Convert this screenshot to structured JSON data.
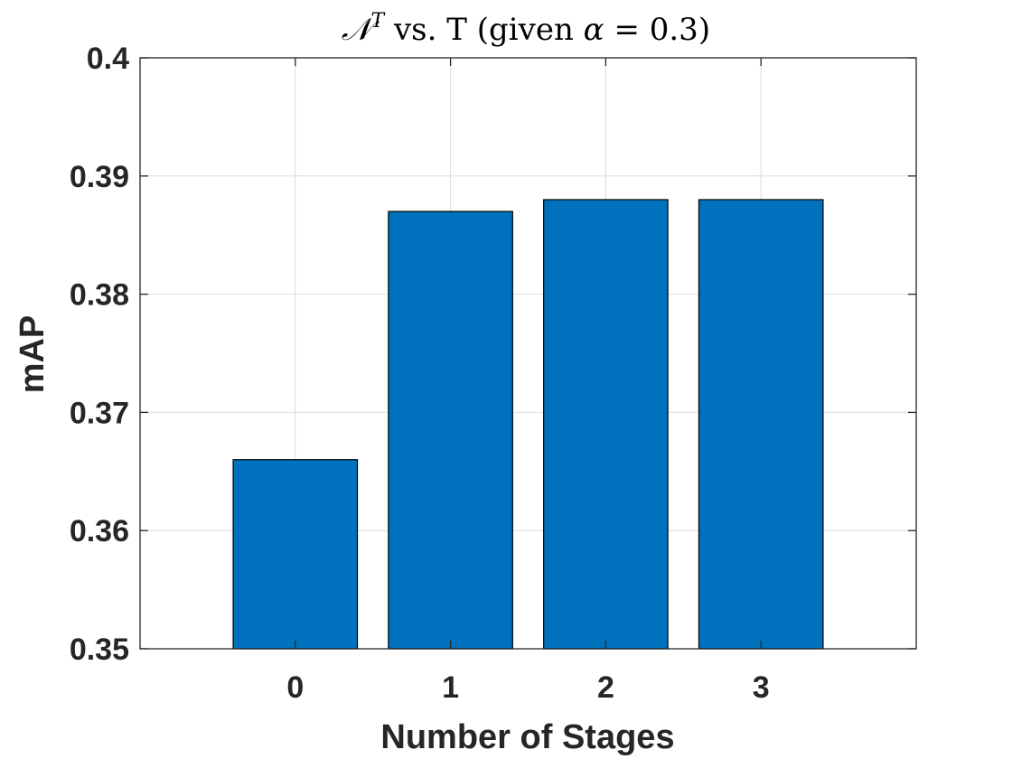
{
  "chart_data": {
    "type": "bar",
    "title": "𝒩ᵀ vs. T (given α = 0.3)",
    "title_parts": {
      "symbol": "𝒩",
      "superscript": "T",
      "rest": " vs. T (given ",
      "alpha": "α",
      "equals": " = 0.3)"
    },
    "xlabel": "Number of Stages",
    "ylabel": "mAP",
    "categories": [
      "0",
      "1",
      "2",
      "3"
    ],
    "values": [
      0.366,
      0.387,
      0.388,
      0.388
    ],
    "xlim": [
      -1,
      4
    ],
    "ylim": [
      0.35,
      0.4
    ],
    "yticks": [
      "0.35",
      "0.36",
      "0.37",
      "0.38",
      "0.39",
      "0.4"
    ],
    "grid": true,
    "bar_color": "#0072BD"
  }
}
